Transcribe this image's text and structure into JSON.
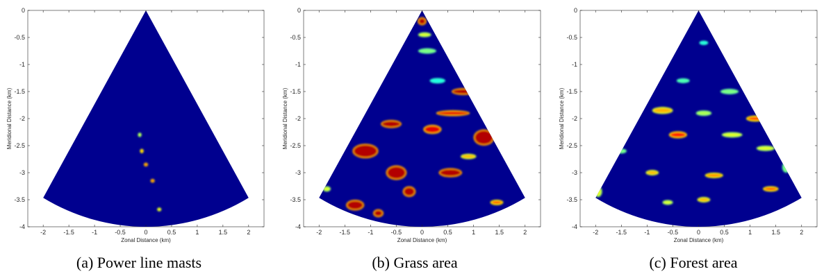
{
  "chart_data": [
    {
      "type": "heatmap",
      "caption": "(a) Power line masts",
      "xlabel": "Zonal Distance (km)",
      "ylabel": "Meridional Distance (km)",
      "xlim": [
        -2.3,
        2.3
      ],
      "ylim": [
        -4,
        0
      ],
      "xticks": [
        "-2",
        "-1.5",
        "-1",
        "-0.5",
        "0",
        "0.5",
        "1",
        "1.5",
        "2"
      ],
      "yticks": [
        "0",
        "-0.5",
        "-1",
        "-1.5",
        "-2",
        "-2.5",
        "-3",
        "-3.5",
        "-4"
      ],
      "sector": {
        "apex": [
          0,
          0
        ],
        "range_km": 4,
        "half_angle_deg": 30
      },
      "background_color": "#00008f",
      "hotspots": [
        {
          "x": -0.12,
          "y": -2.3,
          "w": 0.02,
          "h": 0.03,
          "level": 0.6
        },
        {
          "x": -0.08,
          "y": -2.6,
          "w": 0.02,
          "h": 0.03,
          "level": 0.8
        },
        {
          "x": 0.0,
          "y": -2.85,
          "w": 0.03,
          "h": 0.02,
          "level": 0.9
        },
        {
          "x": 0.13,
          "y": -3.15,
          "w": 0.03,
          "h": 0.02,
          "level": 0.9
        },
        {
          "x": 0.26,
          "y": -3.68,
          "w": 0.03,
          "h": 0.02,
          "level": 0.7
        }
      ]
    },
    {
      "type": "heatmap",
      "caption": "(b) Grass area",
      "xlabel": "Zonal Distance (km)",
      "ylabel": "Meridional Distance (km)",
      "xlim": [
        -2.3,
        2.3
      ],
      "ylim": [
        -4,
        0
      ],
      "xticks": [
        "-2",
        "-1.5",
        "-1",
        "-0.5",
        "0",
        "0.5",
        "1",
        "1.5",
        "2"
      ],
      "yticks": [
        "0",
        "-0.5",
        "-1",
        "-1.5",
        "-2",
        "-2.5",
        "-3",
        "-3.5",
        "-4"
      ],
      "sector": {
        "apex": [
          0,
          0
        ],
        "range_km": 4,
        "half_angle_deg": 30
      },
      "background_color": "#00008f",
      "hotspots": [
        {
          "x": 0.0,
          "y": -0.2,
          "w": 0.12,
          "h": 0.1,
          "level": 0.95
        },
        {
          "x": 0.05,
          "y": -0.45,
          "w": 0.2,
          "h": 0.04,
          "level": 0.6
        },
        {
          "x": 0.1,
          "y": -0.75,
          "w": 0.3,
          "h": 0.05,
          "level": 0.5
        },
        {
          "x": 0.3,
          "y": -1.3,
          "w": 0.25,
          "h": 0.05,
          "level": 0.4
        },
        {
          "x": 0.8,
          "y": -1.5,
          "w": 0.4,
          "h": 0.08,
          "level": 0.95
        },
        {
          "x": 0.6,
          "y": -1.9,
          "w": 0.6,
          "h": 0.06,
          "level": 0.9
        },
        {
          "x": -0.6,
          "y": -2.1,
          "w": 0.35,
          "h": 0.1,
          "level": 0.95
        },
        {
          "x": 0.2,
          "y": -2.2,
          "w": 0.3,
          "h": 0.12,
          "level": 0.9
        },
        {
          "x": 1.2,
          "y": -2.35,
          "w": 0.35,
          "h": 0.25,
          "level": 0.95
        },
        {
          "x": -1.1,
          "y": -2.6,
          "w": 0.45,
          "h": 0.22,
          "level": 0.95
        },
        {
          "x": -0.5,
          "y": -3.0,
          "w": 0.35,
          "h": 0.22,
          "level": 0.95
        },
        {
          "x": -0.25,
          "y": -3.35,
          "w": 0.2,
          "h": 0.15,
          "level": 0.95
        },
        {
          "x": 0.55,
          "y": -3.0,
          "w": 0.4,
          "h": 0.12,
          "level": 0.95
        },
        {
          "x": -1.3,
          "y": -3.6,
          "w": 0.3,
          "h": 0.15,
          "level": 0.95
        },
        {
          "x": -0.85,
          "y": -3.75,
          "w": 0.15,
          "h": 0.1,
          "level": 0.95
        },
        {
          "x": 1.45,
          "y": -3.55,
          "w": 0.2,
          "h": 0.05,
          "level": 0.8
        },
        {
          "x": -1.85,
          "y": -3.3,
          "w": 0.1,
          "h": 0.05,
          "level": 0.6
        },
        {
          "x": 0.9,
          "y": -2.7,
          "w": 0.25,
          "h": 0.05,
          "level": 0.7
        }
      ]
    },
    {
      "type": "heatmap",
      "caption": "(c) Forest area",
      "xlabel": "Zonal Distance (km)",
      "ylabel": "Meridional Distance (km)",
      "xlim": [
        -2.3,
        2.3
      ],
      "ylim": [
        -4,
        0
      ],
      "xticks": [
        "-2",
        "-1.5",
        "-1",
        "-0.5",
        "0",
        "0.5",
        "1",
        "1.5",
        "2"
      ],
      "yticks": [
        "0",
        "-0.5",
        "-1",
        "-1.5",
        "-2",
        "-2.5",
        "-3",
        "-3.5",
        "-4"
      ],
      "sector": {
        "apex": [
          0,
          0
        ],
        "range_km": 4,
        "half_angle_deg": 30
      },
      "background_color": "#00008f",
      "hotspots": [
        {
          "x": 0.1,
          "y": -0.6,
          "w": 0.12,
          "h": 0.03,
          "level": 0.4
        },
        {
          "x": -0.3,
          "y": -1.3,
          "w": 0.2,
          "h": 0.04,
          "level": 0.45
        },
        {
          "x": 0.6,
          "y": -1.5,
          "w": 0.3,
          "h": 0.05,
          "level": 0.5
        },
        {
          "x": -0.7,
          "y": -1.85,
          "w": 0.35,
          "h": 0.08,
          "level": 0.7
        },
        {
          "x": 0.1,
          "y": -1.9,
          "w": 0.25,
          "h": 0.05,
          "level": 0.55
        },
        {
          "x": 1.1,
          "y": -2.0,
          "w": 0.3,
          "h": 0.06,
          "level": 0.8
        },
        {
          "x": -0.4,
          "y": -2.3,
          "w": 0.3,
          "h": 0.08,
          "level": 0.85
        },
        {
          "x": 0.65,
          "y": -2.3,
          "w": 0.35,
          "h": 0.05,
          "level": 0.6
        },
        {
          "x": 1.3,
          "y": -2.55,
          "w": 0.3,
          "h": 0.05,
          "level": 0.6
        },
        {
          "x": -1.5,
          "y": -2.6,
          "w": 0.15,
          "h": 0.04,
          "level": 0.5
        },
        {
          "x": -0.9,
          "y": -3.0,
          "w": 0.2,
          "h": 0.05,
          "level": 0.7
        },
        {
          "x": 0.3,
          "y": -3.05,
          "w": 0.3,
          "h": 0.05,
          "level": 0.75
        },
        {
          "x": -1.95,
          "y": -3.35,
          "w": 0.1,
          "h": 0.15,
          "level": 0.6
        },
        {
          "x": 1.4,
          "y": -3.3,
          "w": 0.25,
          "h": 0.05,
          "level": 0.8
        },
        {
          "x": 0.1,
          "y": -3.5,
          "w": 0.2,
          "h": 0.05,
          "level": 0.7
        },
        {
          "x": 1.7,
          "y": -2.9,
          "w": 0.1,
          "h": 0.15,
          "level": 0.5
        },
        {
          "x": -0.6,
          "y": -3.55,
          "w": 0.15,
          "h": 0.04,
          "level": 0.6
        }
      ]
    }
  ]
}
